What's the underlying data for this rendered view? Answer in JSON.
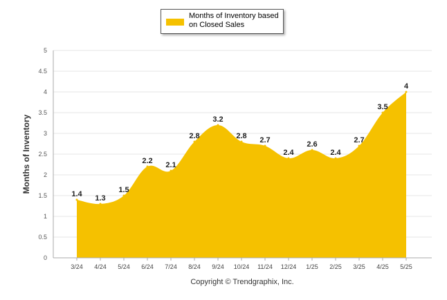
{
  "chart_data": {
    "type": "area",
    "categories": [
      "3/24",
      "4/24",
      "5/24",
      "6/24",
      "7/24",
      "8/24",
      "9/24",
      "10/24",
      "11/24",
      "12/24",
      "1/25",
      "2/25",
      "3/25",
      "4/25",
      "5/25"
    ],
    "series": [
      {
        "name": "Months of Inventory based on Closed Sales",
        "values": [
          1.4,
          1.3,
          1.5,
          2.2,
          2.1,
          2.8,
          3.2,
          2.8,
          2.7,
          2.4,
          2.6,
          2.4,
          2.7,
          3.5,
          4
        ],
        "data_labels": [
          "1.4",
          "1.3",
          "1.5",
          "2.2",
          "2.1",
          "2.8",
          "3.2",
          "2.8",
          "2.7",
          "2.4",
          "2.6",
          "2.4",
          "2.7",
          "3.5",
          "4"
        ],
        "color": "#f5c100"
      }
    ],
    "ylabel": "Months of Inventory",
    "xlabel": "",
    "ylim": [
      0,
      5
    ],
    "yticks": [
      "0",
      "0.5",
      "1",
      "1.5",
      "2",
      "2.5",
      "3",
      "3.5",
      "4",
      "4.5",
      "5"
    ],
    "grid": true,
    "legend_position": "top-center"
  },
  "legend": {
    "label": "Months of Inventory based on Closed Sales"
  },
  "footer": {
    "copyright": "Copyright © Trendgraphix, Inc."
  }
}
